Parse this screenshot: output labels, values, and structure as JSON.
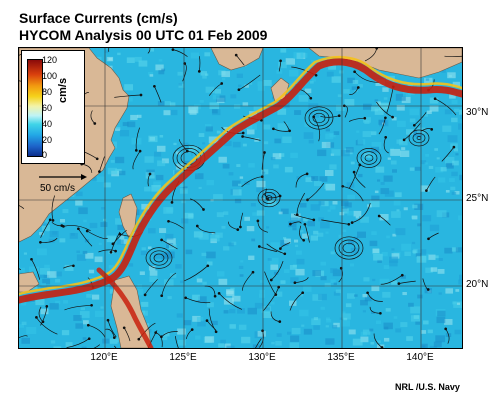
{
  "title": {
    "line1": "Surface Currents (cm/s)",
    "line2": "HYCOM Analysis 00 UTC 01 Feb 2009"
  },
  "colorbar": {
    "unit": "cm/s",
    "ticks": [
      "120",
      "100",
      "80",
      "60",
      "40",
      "20",
      "0"
    ],
    "colors": [
      "#0b2e8c",
      "#22a8e6",
      "#bff3f6",
      "#f5d21a",
      "#f29a10",
      "#d9400d",
      "#8a0a0a"
    ]
  },
  "scale_vector": {
    "label": "50 cm/s"
  },
  "latitude_labels": [
    "30°N",
    "25°N",
    "20°N"
  ],
  "longitude_labels": [
    "120°E",
    "125°E",
    "130°E",
    "135°E",
    "140°E"
  ],
  "credit": "NRL /U.S. Navy",
  "colors": {
    "land": "#d9b896",
    "ocean_base": "#29b6e0",
    "fast_current": "#8a0a0a",
    "gridline": "#444444"
  }
}
